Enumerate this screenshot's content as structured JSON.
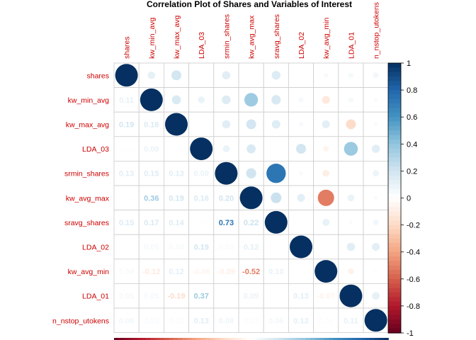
{
  "chart_data": {
    "type": "heatmap",
    "title": "Correlation Plot of Shares and Variables of Interest",
    "variables": [
      "shares",
      "kw_min_avg",
      "kw_max_avg",
      "LDA_03",
      "srmin_shares",
      "kw_avg_max",
      "sravg_shares",
      "LDA_02",
      "kw_avg_min",
      "LDA_01",
      "n_nstop_utokens"
    ],
    "matrix": [
      [
        1.0,
        0.11,
        0.19,
        0.01,
        0.13,
        0.01,
        0.15,
        -0.01,
        0.04,
        0.05,
        0.06
      ],
      [
        0.11,
        1.0,
        0.16,
        0.09,
        0.15,
        0.36,
        0.17,
        0.05,
        -0.12,
        0.05,
        0.03
      ],
      [
        0.19,
        0.16,
        1.0,
        0.01,
        0.13,
        0.19,
        0.14,
        0.04,
        0.12,
        -0.19,
        0.03
      ],
      [
        0.01,
        0.09,
        0.01,
        1.0,
        0.09,
        0.16,
        0.01,
        0.19,
        -0.06,
        0.37,
        0.13
      ],
      [
        0.13,
        0.15,
        0.13,
        0.09,
        1.0,
        0.2,
        0.73,
        0.03,
        -0.09,
        0.01,
        0.08
      ],
      [
        0.01,
        0.36,
        0.19,
        0.16,
        0.2,
        1.0,
        0.22,
        0.12,
        -0.52,
        0.09,
        0.03
      ],
      [
        0.15,
        0.17,
        0.14,
        0.01,
        0.73,
        0.22,
        1.0,
        0.01,
        0.1,
        0.03,
        0.06
      ],
      [
        -0.01,
        0.05,
        0.04,
        0.19,
        0.03,
        0.12,
        0.01,
        1.0,
        0.01,
        0.13,
        0.12
      ],
      [
        0.04,
        -0.12,
        0.12,
        -0.06,
        -0.09,
        -0.52,
        0.1,
        0.01,
        1.0,
        -0.07,
        0.02
      ],
      [
        0.05,
        0.05,
        -0.19,
        0.37,
        0.01,
        0.09,
        0.03,
        0.13,
        -0.07,
        1.0,
        0.11
      ],
      [
        0.06,
        0.03,
        0.03,
        0.13,
        0.08,
        0.03,
        0.06,
        0.12,
        0.02,
        0.11,
        1.0
      ]
    ],
    "lower_labels": [
      [],
      [
        "0.11"
      ],
      [
        "0.19",
        "0.16"
      ],
      [
        "0.01",
        "0.09",
        "0.01"
      ],
      [
        "0.13",
        "0.15",
        "0.13",
        "0.09"
      ],
      [
        "0.01",
        "0.36",
        "0.19",
        "0.16",
        "0.20"
      ],
      [
        "0.15",
        "0.17",
        "0.14",
        "0.01",
        "0.73",
        "0.22"
      ],
      [
        "",
        "0.05",
        "0.04",
        "0.19",
        "0.03",
        "0.12",
        ""
      ],
      [
        "0.04",
        "-0.12",
        "0.12",
        "-0.06",
        "-0.09",
        "-0.52",
        "0.10",
        ""
      ],
      [
        "0.05",
        "0.05",
        "-0.19",
        "0.37",
        "",
        "0.09",
        "",
        "0.13",
        "-0.07"
      ],
      [
        "0.06",
        "0.03",
        "0.03",
        "0.13",
        "0.08",
        "0.03",
        "0.06",
        "0.12",
        "0.02",
        "0.11"
      ]
    ],
    "colorbar_ticks": [
      "1",
      "0.8",
      "0.6",
      "0.4",
      "0.2",
      "0",
      "-0.2",
      "-0.4",
      "-0.6",
      "-0.8",
      "-1"
    ],
    "range": [
      -1,
      1
    ],
    "upper": "circle",
    "lower": "number",
    "colors": {
      "negative": "#67001F",
      "zero": "#FFFFFF",
      "positive": "#053061",
      "label_text": "#CC0000",
      "grid": "#CCCCCC"
    }
  }
}
